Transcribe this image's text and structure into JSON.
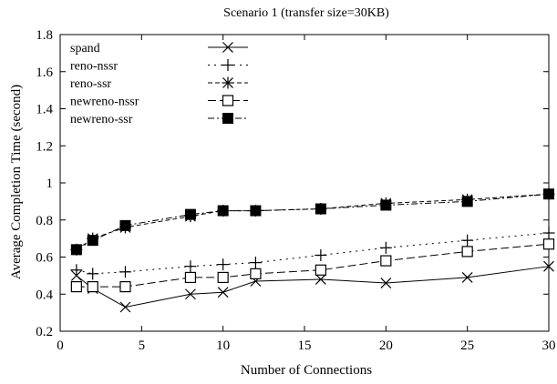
{
  "chart_data": {
    "type": "line",
    "title": "Scenario 1 (transfer size=30KB)",
    "xlabel": "Number of Connections",
    "ylabel": "Average Completion Time (second)",
    "xlim": [
      0,
      30
    ],
    "ylim": [
      0.2,
      1.8
    ],
    "xticks": [
      "0",
      "5",
      "10",
      "15",
      "20",
      "25",
      "30"
    ],
    "yticks": [
      "0.2",
      "0.4",
      "0.6",
      "0.8",
      "1",
      "1.2",
      "1.4",
      "1.6",
      "1.8"
    ],
    "grid": false,
    "legend_position": "top-left",
    "series": [
      {
        "name": "spand",
        "marker": "x",
        "dash": "solid",
        "x": [
          1,
          2,
          4,
          8,
          10,
          12,
          16,
          20,
          25,
          30
        ],
        "y": [
          0.5,
          0.43,
          0.33,
          0.4,
          0.41,
          0.47,
          0.48,
          0.46,
          0.49,
          0.55
        ]
      },
      {
        "name": "reno-nssr",
        "marker": "plus",
        "dash": "dotted",
        "x": [
          1,
          2,
          4,
          8,
          10,
          12,
          16,
          20,
          25,
          30
        ],
        "y": [
          0.53,
          0.51,
          0.52,
          0.55,
          0.56,
          0.57,
          0.61,
          0.65,
          0.69,
          0.73
        ]
      },
      {
        "name": "reno-ssr",
        "marker": "star",
        "dash": "dashed",
        "x": [
          1,
          2,
          4,
          8,
          10,
          12,
          16,
          20,
          25,
          30
        ],
        "y": [
          0.64,
          0.7,
          0.76,
          0.82,
          0.85,
          0.85,
          0.86,
          0.89,
          0.91,
          0.94
        ]
      },
      {
        "name": "newreno-nssr",
        "marker": "open-square",
        "dash": "long-dashed",
        "x": [
          1,
          2,
          4,
          8,
          10,
          12,
          16,
          20,
          25,
          30
        ],
        "y": [
          0.44,
          0.44,
          0.44,
          0.49,
          0.49,
          0.51,
          0.53,
          0.58,
          0.63,
          0.67
        ]
      },
      {
        "name": "newreno-ssr",
        "marker": "filled-square",
        "dash": "dash-dot",
        "x": [
          1,
          2,
          4,
          8,
          10,
          12,
          16,
          20,
          25,
          30
        ],
        "y": [
          0.64,
          0.69,
          0.77,
          0.83,
          0.85,
          0.85,
          0.86,
          0.88,
          0.9,
          0.94
        ]
      }
    ]
  }
}
